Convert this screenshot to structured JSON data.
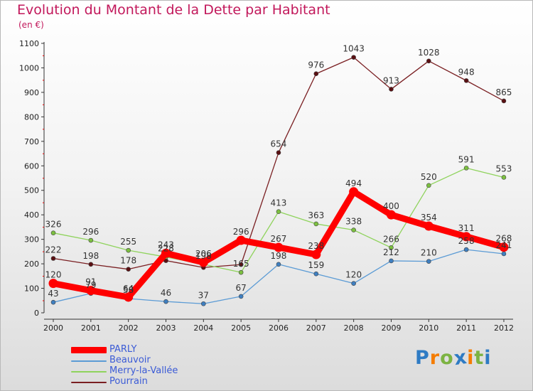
{
  "title": "Evolution du Montant de la Dette par Habitant",
  "subtitle": "(en €)",
  "logo": {
    "letters": [
      "P",
      "r",
      "o",
      "x",
      "i",
      "t",
      "i"
    ],
    "colors": [
      "#2e7bc4",
      "#f57c00",
      "#7cb342",
      "#2e7bc4",
      "#f57c00",
      "#7cb342",
      "#2e7bc4"
    ]
  },
  "chart_data": {
    "type": "line",
    "title": "Evolution du Montant de la Dette par Habitant",
    "subtitle": "(en €)",
    "x": [
      "2000",
      "2001",
      "2002",
      "2003",
      "2004",
      "2005",
      "2006",
      "2007",
      "2008",
      "2009",
      "2010",
      "2011",
      "2012"
    ],
    "ylim": [
      0,
      1100
    ],
    "yticks": [
      0,
      100,
      200,
      300,
      400,
      500,
      600,
      700,
      800,
      900,
      1000,
      1100
    ],
    "grid": false,
    "legend_position": "bottom-left",
    "series": [
      {
        "name": "Pourrain",
        "color": "#7a1f22",
        "marker": "#5a0f12",
        "emphasis": false,
        "values": [
          222,
          198,
          178,
          213,
          185,
          197,
          654,
          976,
          1043,
          913,
          1028,
          948,
          865
        ],
        "labels": [
          "222",
          "198",
          "178",
          "",
          "",
          "",
          "654",
          "976",
          "1043",
          "913",
          "1028",
          "948",
          "865"
        ]
      },
      {
        "name": "Merry-la-Vallée",
        "color": "#8fd35c",
        "marker": "#7cc040",
        "emphasis": false,
        "values": [
          326,
          296,
          255,
          228,
          198,
          165,
          413,
          363,
          338,
          266,
          520,
          591,
          553
        ],
        "labels": [
          "326",
          "296",
          "255",
          "228",
          "198",
          "165",
          "413",
          "363",
          "338",
          "266",
          "520",
          "591",
          "553"
        ]
      },
      {
        "name": "Beauvoir",
        "color": "#5b9bd5",
        "marker": "#3f7fc0",
        "emphasis": false,
        "values": [
          43,
          79,
          58,
          46,
          37,
          67,
          198,
          159,
          120,
          212,
          210,
          258,
          241
        ],
        "labels": [
          "43",
          "79",
          "58",
          "46",
          "37",
          "67",
          "198",
          "159",
          "120",
          "212",
          "210",
          "258",
          "241"
        ]
      },
      {
        "name": "PARLY",
        "color": "#ff0000",
        "marker": "#ff0000",
        "emphasis": true,
        "values": [
          120,
          91,
          64,
          243,
          206,
          296,
          267,
          238,
          494,
          400,
          354,
          311,
          268
        ],
        "labels": [
          "120",
          "91",
          "64",
          "243",
          "206",
          "296",
          "267",
          "238",
          "494",
          "400",
          "354",
          "311",
          "268"
        ]
      }
    ]
  },
  "legend": [
    {
      "label": "PARLY",
      "color": "#ff0000",
      "emphasis": true,
      "text_color": "#3b5bd6"
    },
    {
      "label": "Beauvoir",
      "color": "#5b9bd5",
      "emphasis": false,
      "text_color": "#3b5bd6"
    },
    {
      "label": "Merry-la-Vallée",
      "color": "#8fd35c",
      "emphasis": false,
      "text_color": "#3b5bd6"
    },
    {
      "label": "Pourrain",
      "color": "#7a1f22",
      "emphasis": false,
      "text_color": "#3b5bd6"
    }
  ]
}
